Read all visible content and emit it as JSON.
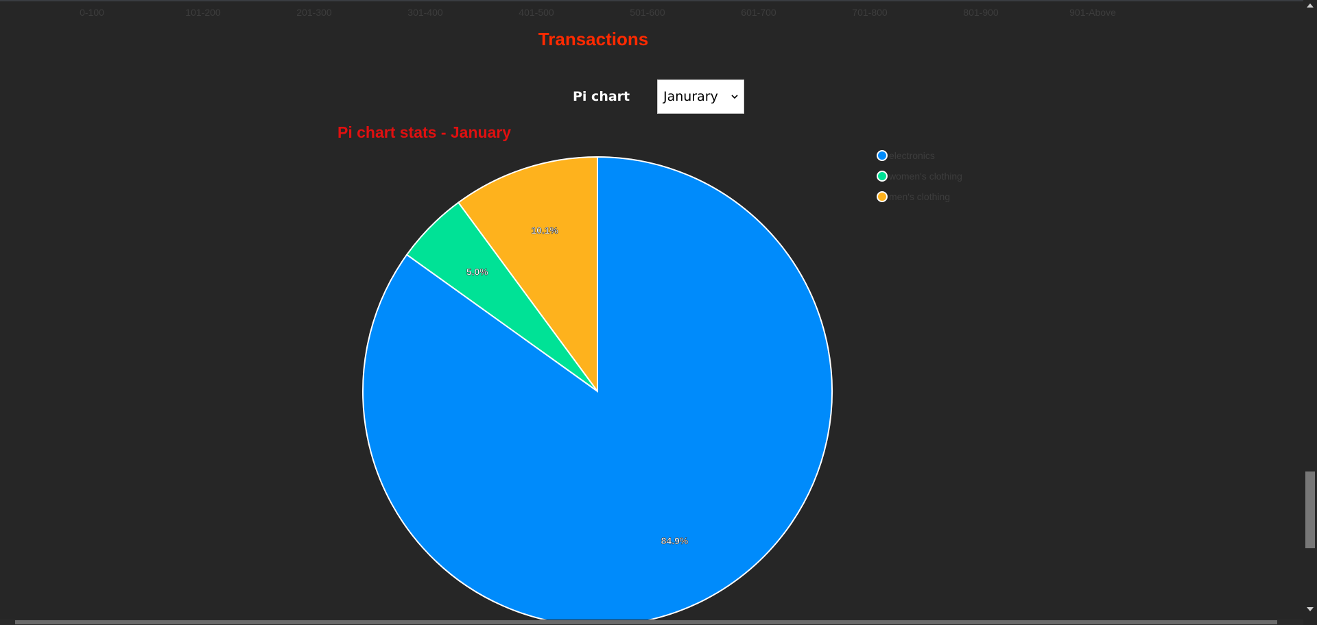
{
  "range_axis": {
    "labels": [
      "0-100",
      "101-200",
      "201-300",
      "301-400",
      "401-500",
      "501-600",
      "601-700",
      "701-800",
      "801-900",
      "901-Above"
    ]
  },
  "header": {
    "title": "Transactions"
  },
  "controls": {
    "chart_label": "Pi chart",
    "month_select": {
      "selected": "Janurary"
    }
  },
  "colors": {
    "electronics": "#008bfb",
    "womens_clothing": "#00e296",
    "mens_clothing": "#feb21d",
    "title_red": "#ff2a00"
  },
  "chart_data": {
    "type": "pie",
    "title": "Pi chart stats - January",
    "categories": [
      "electronics",
      "women's clothing",
      "men's clothing"
    ],
    "values": [
      84.9,
      5.0,
      10.1
    ],
    "data_labels": [
      "84.9%",
      "5.0%",
      "10.1%"
    ],
    "colors": [
      "#008bfb",
      "#00e296",
      "#feb21d"
    ],
    "legend_position": "top-right"
  },
  "scrollbars": {
    "vertical_icons": [
      "scroll-up-arrow-icon",
      "scroll-down-arrow-icon"
    ]
  }
}
